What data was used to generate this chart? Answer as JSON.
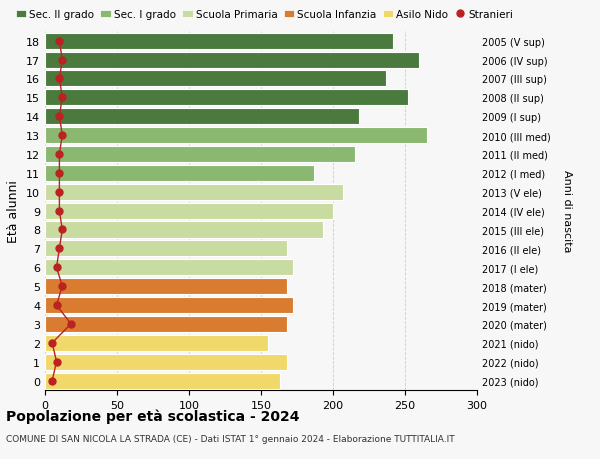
{
  "ages": [
    0,
    1,
    2,
    3,
    4,
    5,
    6,
    7,
    8,
    9,
    10,
    11,
    12,
    13,
    14,
    15,
    16,
    17,
    18
  ],
  "values": [
    163,
    168,
    155,
    168,
    172,
    168,
    172,
    168,
    193,
    200,
    207,
    187,
    215,
    265,
    218,
    252,
    237,
    260,
    242
  ],
  "stranieri": [
    5,
    8,
    5,
    18,
    8,
    12,
    8,
    10,
    12,
    10,
    10,
    10,
    10,
    12,
    10,
    12,
    10,
    12,
    10
  ],
  "right_labels": [
    "2023 (nido)",
    "2022 (nido)",
    "2021 (nido)",
    "2020 (mater)",
    "2019 (mater)",
    "2018 (mater)",
    "2017 (I ele)",
    "2016 (II ele)",
    "2015 (III ele)",
    "2014 (IV ele)",
    "2013 (V ele)",
    "2012 (I med)",
    "2011 (II med)",
    "2010 (III med)",
    "2009 (I sup)",
    "2008 (II sup)",
    "2007 (III sup)",
    "2006 (IV sup)",
    "2005 (V sup)"
  ],
  "bar_colors": [
    "#f0d96a",
    "#f0d96a",
    "#f0d96a",
    "#d97c30",
    "#d97c30",
    "#d97c30",
    "#c8dba0",
    "#c8dba0",
    "#c8dba0",
    "#c8dba0",
    "#c8dba0",
    "#8ab870",
    "#8ab870",
    "#8ab870",
    "#4a7a3d",
    "#4a7a3d",
    "#4a7a3d",
    "#4a7a3d",
    "#4a7a3d"
  ],
  "legend_labels": [
    "Sec. II grado",
    "Sec. I grado",
    "Scuola Primaria",
    "Scuola Infanzia",
    "Asilo Nido",
    "Stranieri"
  ],
  "legend_colors": [
    "#4a7a3d",
    "#8ab870",
    "#c8dba0",
    "#d97c30",
    "#f0d96a",
    "#bb2222"
  ],
  "ylabel": "Età alunni",
  "right_ylabel": "Anni di nascita",
  "title": "Popolazione per età scolastica - 2024",
  "subtitle": "COMUNE DI SAN NICOLA LA STRADA (CE) - Dati ISTAT 1° gennaio 2024 - Elaborazione TUTTITALIA.IT",
  "xlim": [
    0,
    300
  ],
  "xticks": [
    0,
    50,
    100,
    150,
    200,
    250,
    300
  ],
  "bg_color": "#f7f7f7",
  "bar_height": 0.85,
  "stranieri_color": "#bb2222",
  "stranieri_markersize": 5,
  "stranieri_linewidth": 1.0
}
